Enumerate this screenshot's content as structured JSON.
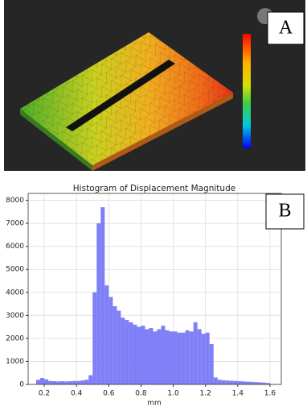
{
  "panel_a": {
    "label": "A"
  },
  "panel_b": {
    "label": "B"
  },
  "chart_data": {
    "type": "histogram",
    "title": "Histogram of Displacement Magnitude",
    "x_label": "mm",
    "color": "#7f7ff7",
    "grid": true,
    "bins": [
      0.15,
      0.175,
      0.2,
      0.225,
      0.25,
      0.275,
      0.3,
      0.325,
      0.35,
      0.375,
      0.4,
      0.425,
      0.45,
      0.475,
      0.5,
      0.525,
      0.55,
      0.575,
      0.6,
      0.625,
      0.65,
      0.675,
      0.7,
      0.725,
      0.75,
      0.775,
      0.8,
      0.825,
      0.85,
      0.875,
      0.9,
      0.925,
      0.95,
      0.975,
      1.0,
      1.025,
      1.05,
      1.075,
      1.1,
      1.125,
      1.15,
      1.175,
      1.2,
      1.225,
      1.25,
      1.275,
      1.3,
      1.325,
      1.35,
      1.375,
      1.4,
      1.425,
      1.45,
      1.475,
      1.5,
      1.525,
      1.55,
      1.575,
      1.6
    ],
    "values": [
      200,
      280,
      220,
      150,
      140,
      130,
      140,
      130,
      140,
      150,
      150,
      170,
      200,
      400,
      4000,
      7000,
      7700,
      4300,
      3800,
      3400,
      3200,
      2900,
      2800,
      2700,
      2600,
      2500,
      2550,
      2400,
      2450,
      2300,
      2400,
      2550,
      2350,
      2300,
      2300,
      2250,
      2250,
      2350,
      2300,
      2700,
      2400,
      2200,
      2250,
      1750,
      300,
      200,
      180,
      170,
      160,
      150,
      140,
      130,
      120,
      110,
      100,
      90,
      80,
      60
    ],
    "xlim": [
      0.1,
      1.67
    ],
    "ylim": [
      0,
      8300
    ],
    "xticks": [
      0.2,
      0.4,
      0.6,
      0.8,
      {
        "value": 1,
        "label": "1.0"
      },
      1.2,
      1.4,
      1.6
    ],
    "yticks": [
      0,
      1000,
      2000,
      3000,
      4000,
      5000,
      6000,
      7000,
      8000
    ]
  }
}
